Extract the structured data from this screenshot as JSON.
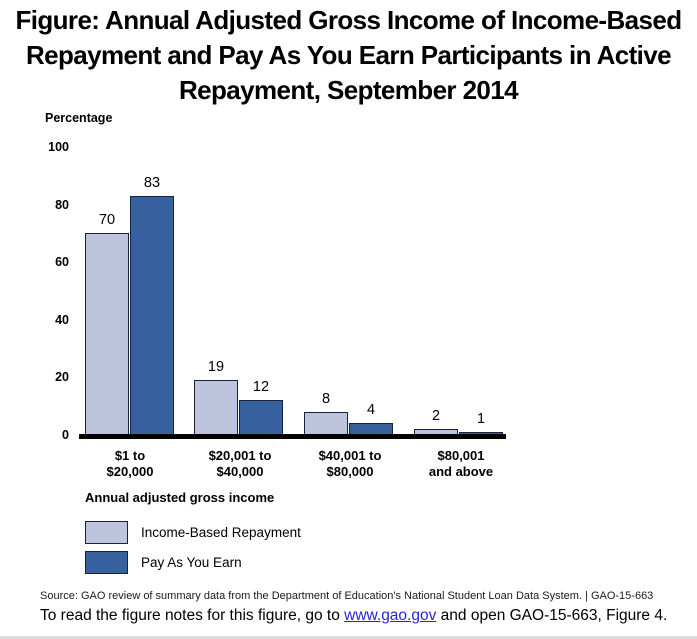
{
  "title": "Figure: Annual Adjusted Gross Income of Income-Based Repayment and Pay As You Earn Participants in Active Repayment, September 2014",
  "chart_data": {
    "type": "bar",
    "title": "Annual Adjusted Gross Income of Income-Based Repayment and Pay As You Earn Participants in Active Repayment, September 2014",
    "ylabel": "Percentage",
    "xlabel": "Annual adjusted gross income",
    "ylim": [
      0,
      100
    ],
    "grid": false,
    "legend_position": "bottom-left",
    "yticks": [
      "100",
      "80",
      "60",
      "40",
      "20",
      "0"
    ],
    "categories": [
      {
        "line1": "$1 to",
        "line2": "$20,000"
      },
      {
        "line1": "$20,001 to",
        "line2": "$40,000"
      },
      {
        "line1": "$40,001 to",
        "line2": "$80,000"
      },
      {
        "line1": "$80,001",
        "line2": "and above"
      }
    ],
    "series": [
      {
        "name": "Income-Based Repayment",
        "color": "#bec3de",
        "values": [
          70,
          19,
          8,
          2
        ]
      },
      {
        "name": "Pay As You Earn",
        "color": "#36619e",
        "values": [
          83,
          12,
          4,
          1
        ]
      }
    ]
  },
  "source_line": "Source: GAO review of summary data from the Department of Education's National Student Loan Data System.  |  GAO-15-663",
  "footer": {
    "prefix": "To read the figure notes for this figure, go to ",
    "link_text": "www.gao.gov",
    "suffix": " and open GAO-15-663,  Figure 4."
  },
  "colors": {
    "bar_light": "#bec3de",
    "bar_dark": "#36619e",
    "bar_border": "#18223e",
    "axis": "#000000",
    "link": "#2626d8"
  }
}
